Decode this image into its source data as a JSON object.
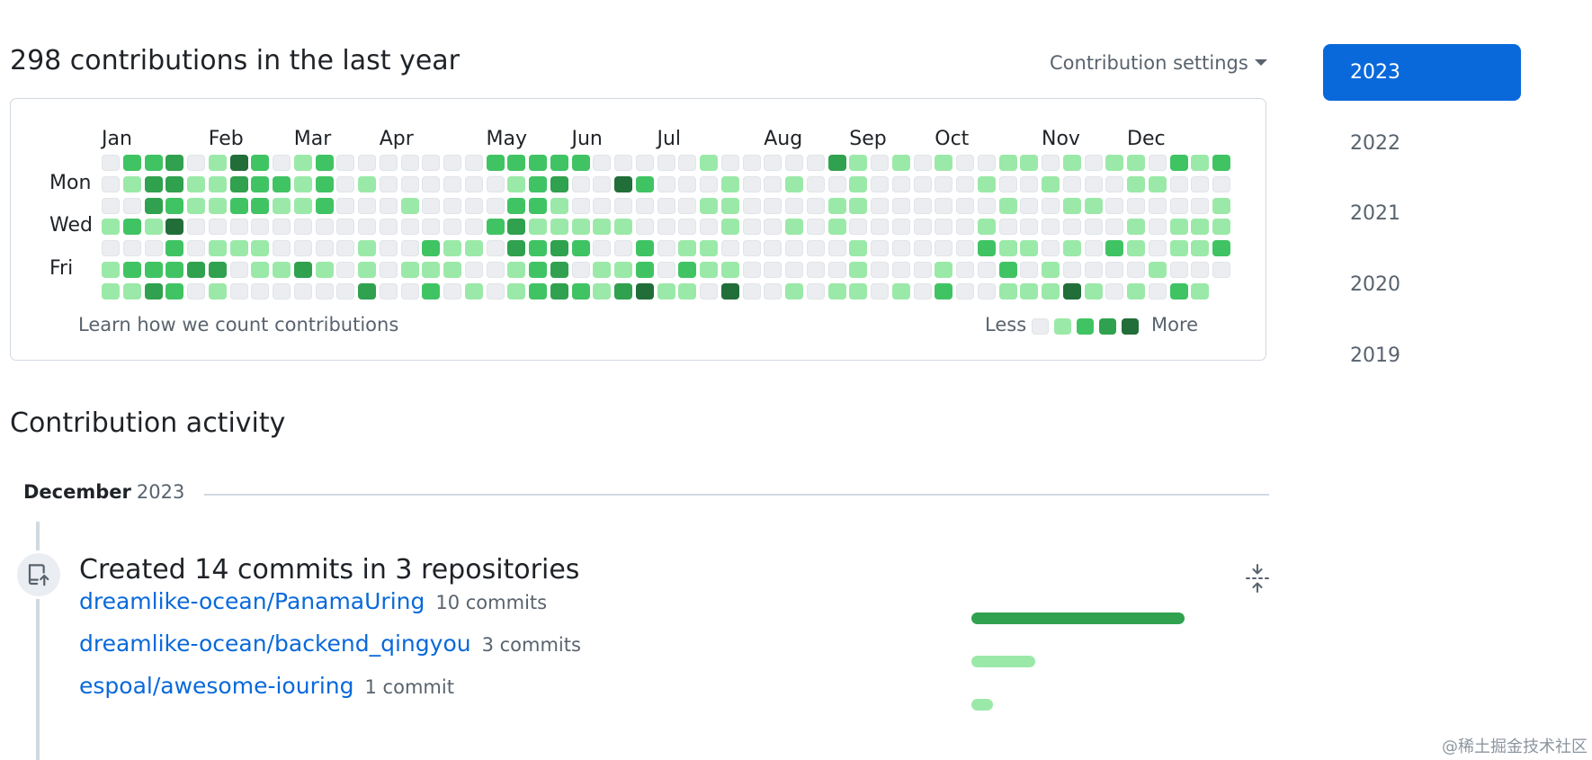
{
  "header": {
    "contributions_title": "298 contributions in the last year",
    "settings_label": "Contribution settings"
  },
  "graph": {
    "months": [
      "Jan",
      "Feb",
      "Mar",
      "Apr",
      "May",
      "Jun",
      "Jul",
      "Aug",
      "Sep",
      "Oct",
      "Nov",
      "Dec"
    ],
    "month_start_weeks": [
      0,
      5,
      9,
      13,
      18,
      22,
      26,
      31,
      35,
      39,
      44,
      48
    ],
    "day_labels": [
      "Mon",
      "Wed",
      "Fri"
    ],
    "weeks": 53,
    "levels_by_week": [
      "0001011",
      "2102021",
      "2331023",
      "3324222",
      "0110030",
      "1110131",
      "4320100",
      "2220110",
      "0210010",
      "1110030",
      "2220010",
      "0000000",
      "0100113",
      "0000000",
      "0010010",
      "0000212",
      "0000110",
      "0000101",
      "2002000",
      "2123311",
      "2221222",
      "2311333",
      "2001202",
      "0001011",
      "0401013",
      "0200224",
      "0000001",
      "0000121",
      "1010110",
      "0111014",
      "0000000",
      "0000000",
      "0101001",
      "0000000",
      "3011001",
      "1110111",
      "0000000",
      "1000001",
      "0000000",
      "1000012",
      "0000000",
      "0101200",
      "1010121",
      "1000101",
      "0100011",
      "1010104",
      "0010001",
      "1000200",
      "1101101",
      "0100010",
      "2001102",
      "1001101",
      "2011202"
    ],
    "level_colors": [
      "#ebedf0",
      "#9be9a8",
      "#40c463",
      "#30a14e",
      "#216e39"
    ],
    "learn_link": "Learn how we count contributions",
    "legend_less": "Less",
    "legend_more": "More"
  },
  "activity": {
    "title": "Contribution activity",
    "month_name": "December",
    "month_year": "2023",
    "commit_summary": "Created 14 commits in 3 repositories",
    "repos": [
      {
        "name": "dreamlike-ocean/PanamaUring",
        "count_label": "10 commits",
        "commits": 10,
        "color": "#30a14e"
      },
      {
        "name": "dreamlike-ocean/backend_qingyou",
        "count_label": "3 commits",
        "commits": 3,
        "color": "#9be9a8"
      },
      {
        "name": "espoal/awesome-iouring",
        "count_label": "1 commit",
        "commits": 1,
        "color": "#9be9a8"
      }
    ]
  },
  "years": {
    "items": [
      "2023",
      "2022",
      "2021",
      "2020",
      "2019"
    ],
    "selected": "2023"
  },
  "watermark": "@稀土掘金技术社区",
  "icons": {
    "caret": "caret-down-icon",
    "commit": "repo-push-icon",
    "collapse": "fold-icon"
  }
}
